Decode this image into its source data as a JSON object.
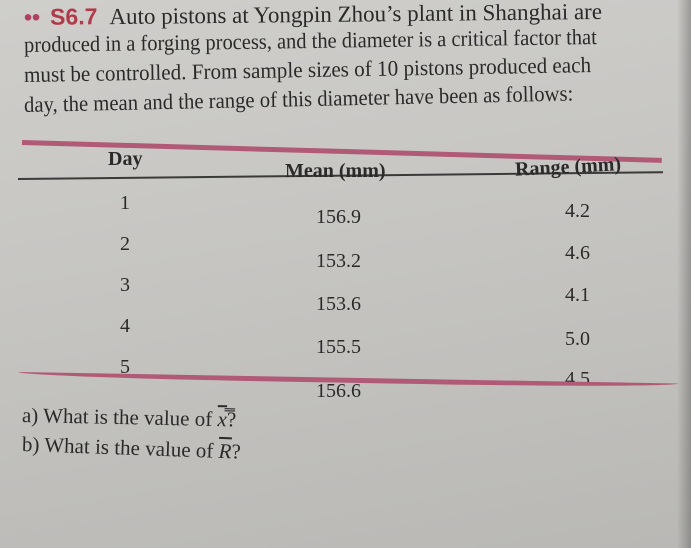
{
  "problem": {
    "marker": "••",
    "number": "S6.7",
    "lines": [
      "Auto pistons at Yongpin Zhou’s plant in Shanghai are",
      "produced in a forging process, and the diameter is a critical factor that",
      "must be controlled. From sample sizes of 10 pistons produced each",
      "day, the mean and the range of this diameter have been as follows:"
    ]
  },
  "table": {
    "headers": [
      "Day",
      "Mean (mm)",
      "Range (mm)"
    ],
    "rows": [
      {
        "day": "1",
        "mean": "156.9",
        "range": "4.2"
      },
      {
        "day": "2",
        "mean": "153.2",
        "range": "4.6"
      },
      {
        "day": "3",
        "mean": "153.6",
        "range": "4.1"
      },
      {
        "day": "4",
        "mean": "155.5",
        "range": "5.0"
      },
      {
        "day": "5",
        "mean": "156.6",
        "range": "4.5"
      }
    ]
  },
  "questions": [
    {
      "prefix": "a) What is the value of ",
      "symbol": "x̿",
      "suffix": "?"
    },
    {
      "prefix": "b) What is the value of ",
      "symbol": "R",
      "suffix": "?"
    }
  ],
  "colors": {
    "accent": "#b05a78",
    "paper": "#c9c8c5"
  }
}
